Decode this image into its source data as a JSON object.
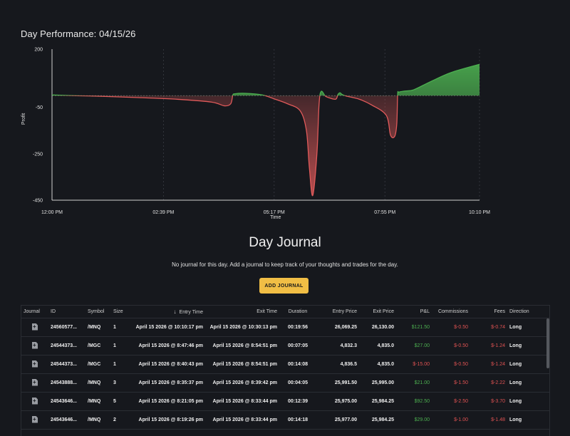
{
  "page_title": "Day Performance: 04/15/26",
  "chart_data": {
    "type": "area",
    "ylabel": "Profit",
    "xlabel": "Time",
    "y_ticks": [
      "200",
      "-50",
      "-250",
      "-450"
    ],
    "y_tick_values": [
      200,
      -50,
      -250,
      -450
    ],
    "ylim": [
      -450,
      200
    ],
    "x_ticks": [
      "12:00 PM",
      "02:39 PM",
      "05:17 PM",
      "07:55 PM",
      "10:10 PM"
    ],
    "x_tick_hours": [
      12.0,
      14.65,
      17.283,
      19.917,
      22.167
    ],
    "xlim_hours": [
      12.0,
      22.167
    ],
    "baseline": 0,
    "colors": {
      "positive": "#4caf50",
      "negative": "#e05a5a"
    },
    "series": [
      {
        "x_hours": [
          12.0,
          12.5,
          13.0,
          14.0,
          15.0,
          15.8,
          16.1,
          16.25,
          16.3,
          16.35,
          16.6,
          17.0,
          17.3,
          17.6,
          17.9,
          18.05,
          18.12,
          18.2,
          18.3,
          18.35,
          18.4,
          18.5,
          18.6,
          18.75,
          18.8,
          18.85,
          18.9,
          19.0,
          19.3,
          19.6,
          19.95,
          20.05,
          20.15,
          20.2,
          20.22,
          20.25,
          20.4,
          20.6,
          21.0,
          21.5,
          22.167
        ],
        "y": [
          3,
          0,
          -2,
          -8,
          -16,
          -28,
          -44,
          -35,
          2,
          8,
          10,
          3,
          -15,
          -35,
          -65,
          -150,
          -310,
          -430,
          -250,
          -40,
          18,
          -2,
          -10,
          -15,
          5,
          12,
          5,
          -2,
          -15,
          -40,
          -85,
          -170,
          -175,
          -120,
          5,
          15,
          20,
          25,
          60,
          100,
          135
        ]
      }
    ]
  },
  "journal": {
    "title": "Day Journal",
    "message": "No journal for this day. Add a journal to keep track of your thoughts and trades for the day.",
    "add_button": "ADD JOURNAL"
  },
  "table": {
    "headers": [
      "Journal",
      "ID",
      "Symbol",
      "Size",
      "Entry Time",
      "Exit Time",
      "Duration",
      "Entry Price",
      "Exit Price",
      "P&L",
      "Commissions",
      "Fees",
      "Direction"
    ],
    "rows": [
      {
        "id": "24560577...",
        "symbol": "/MNQ",
        "size": "1",
        "entry_time": "April 15 2026 @ 10:10:17 pm",
        "exit_time": "April 15 2026 @ 10:30:13 pm",
        "duration": "00:19:56",
        "entry_price": "26,069.25",
        "exit_price": "26,130.00",
        "pnl": "$121.50",
        "pnl_sign": "pos",
        "commissions": "$-0.50",
        "fees": "$-0.74",
        "direction": "Long"
      },
      {
        "id": "24544373...",
        "symbol": "/MGC",
        "size": "1",
        "entry_time": "April 15 2026 @ 8:47:46 pm",
        "exit_time": "April 15 2026 @ 8:54:51 pm",
        "duration": "00:07:05",
        "entry_price": "4,832.3",
        "exit_price": "4,835.0",
        "pnl": "$27.00",
        "pnl_sign": "pos",
        "commissions": "$-0.50",
        "fees": "$-1.24",
        "direction": "Long"
      },
      {
        "id": "24544373...",
        "symbol": "/MGC",
        "size": "1",
        "entry_time": "April 15 2026 @ 8:40:43 pm",
        "exit_time": "April 15 2026 @ 8:54:51 pm",
        "duration": "00:14:08",
        "entry_price": "4,836.5",
        "exit_price": "4,835.0",
        "pnl": "$-15.00",
        "pnl_sign": "neg",
        "commissions": "$-0.50",
        "fees": "$-1.24",
        "direction": "Long"
      },
      {
        "id": "24543888...",
        "symbol": "/MNQ",
        "size": "3",
        "entry_time": "April 15 2026 @ 8:35:37 pm",
        "exit_time": "April 15 2026 @ 8:39:42 pm",
        "duration": "00:04:05",
        "entry_price": "25,991.50",
        "exit_price": "25,995.00",
        "pnl": "$21.00",
        "pnl_sign": "pos",
        "commissions": "$-1.50",
        "fees": "$-2.22",
        "direction": "Long"
      },
      {
        "id": "24543646...",
        "symbol": "/MNQ",
        "size": "5",
        "entry_time": "April 15 2026 @ 8:21:05 pm",
        "exit_time": "April 15 2026 @ 8:33:44 pm",
        "duration": "00:12:39",
        "entry_price": "25,975.00",
        "exit_price": "25,984.25",
        "pnl": "$92.50",
        "pnl_sign": "pos",
        "commissions": "$-2.50",
        "fees": "$-3.70",
        "direction": "Long"
      },
      {
        "id": "24543646...",
        "symbol": "/MNQ",
        "size": "2",
        "entry_time": "April 15 2026 @ 8:19:26 pm",
        "exit_time": "April 15 2026 @ 8:33:44 pm",
        "duration": "00:14:18",
        "entry_price": "25,977.00",
        "exit_price": "25,984.25",
        "pnl": "$29.00",
        "pnl_sign": "pos",
        "commissions": "$-1.00",
        "fees": "$-1.48",
        "direction": "Long"
      }
    ]
  },
  "icons": {
    "journal_row": "add-document-icon",
    "sort": "arrow-down-icon"
  }
}
